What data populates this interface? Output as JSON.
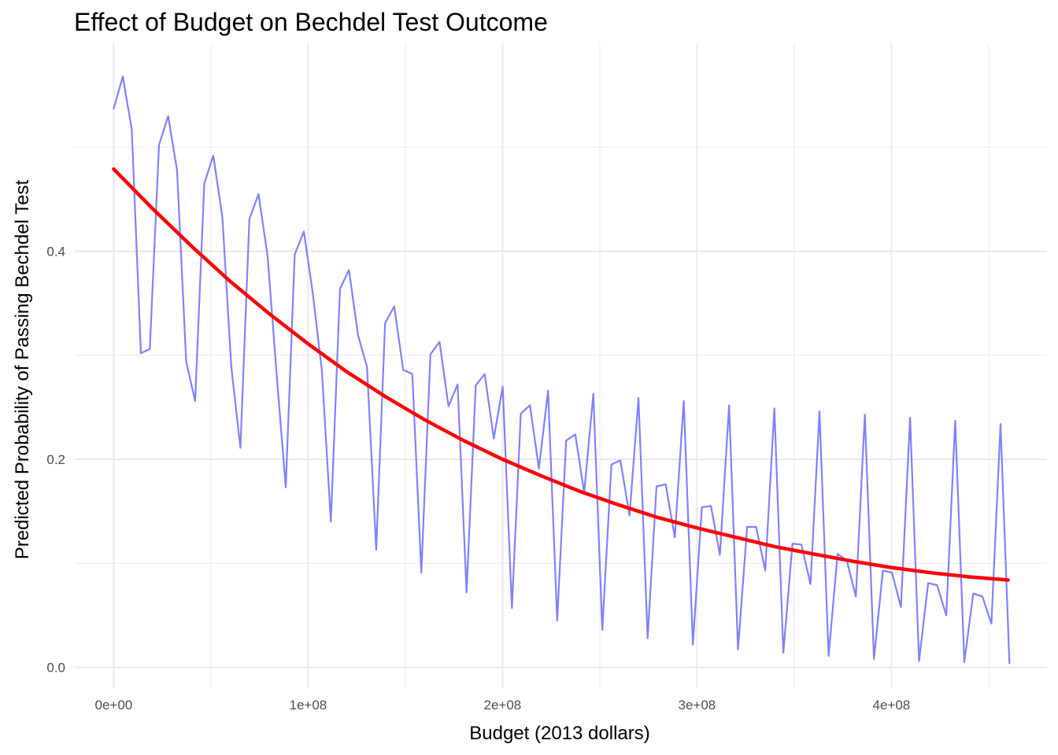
{
  "chart_data": {
    "type": "line",
    "title": "Effect of Budget on Bechdel Test Outcome",
    "xlabel": "Budget (2013 dollars)",
    "ylabel": "Predicted Probability of Passing Bechdel Test",
    "xlim": [
      -20000000,
      480000000
    ],
    "ylim": [
      -0.02,
      0.6
    ],
    "xticks": [
      0,
      100000000,
      200000000,
      300000000,
      400000000
    ],
    "xtick_labels": [
      "0e+00",
      "1e+08",
      "2e+08",
      "3e+08",
      "4e+08"
    ],
    "yticks": [
      0.0,
      0.2,
      0.4
    ],
    "ytick_labels": [
      "0.0",
      "0.2",
      "0.4"
    ],
    "grid": true,
    "colors": {
      "series": "#8080ff",
      "fit": "#ff0000",
      "grid": "#ebebeb"
    },
    "series": [
      {
        "x": [
          0,
          4700000,
          9300000,
          14000000,
          18600000,
          23300000,
          28000000,
          32600000,
          37300000,
          41900000,
          46600000,
          51200000,
          55900000,
          60500000,
          65200000,
          69800000,
          74500000,
          79200000,
          83800000,
          88500000,
          93100000,
          97800000,
          102400000,
          107100000,
          111700000,
          116400000,
          121000000,
          125700000,
          130300000,
          135000000,
          139600000,
          144300000,
          148900000,
          153600000,
          158200000,
          162900000,
          167600000,
          172200000,
          176900000,
          181500000,
          186200000,
          190800000,
          195500000,
          200100000,
          204800000,
          209400000,
          214100000,
          218700000,
          223400000,
          228100000,
          232700000,
          237400000,
          242000000,
          246700000,
          251300000,
          256000000,
          260600000,
          265300000,
          269900000,
          274600000,
          279200000,
          283900000,
          288600000,
          293200000,
          297900000,
          302500000,
          307200000,
          311800000,
          316500000,
          321100000,
          325800000,
          330400000,
          335100000,
          339800000,
          344400000,
          349100000,
          353700000,
          358400000,
          363000000,
          367700000,
          372300000,
          377000000,
          381700000,
          386300000,
          391000000,
          395600000,
          400300000,
          404900000,
          409600000,
          414200000,
          418900000,
          423500000,
          428200000,
          432800000,
          437500000,
          442100000,
          446800000,
          451400000,
          456100000,
          460700000
        ],
        "values": [
          0.537,
          0.568,
          0.517,
          0.302,
          0.306,
          0.502,
          0.53,
          0.478,
          0.294,
          0.256,
          0.465,
          0.492,
          0.433,
          0.289,
          0.211,
          0.431,
          0.455,
          0.395,
          0.282,
          0.173,
          0.397,
          0.419,
          0.36,
          0.285,
          0.14,
          0.364,
          0.382,
          0.319,
          0.289,
          0.113,
          0.331,
          0.347,
          0.286,
          0.282,
          0.091,
          0.301,
          0.313,
          0.251,
          0.272,
          0.072,
          0.271,
          0.282,
          0.22,
          0.27,
          0.057,
          0.244,
          0.252,
          0.191,
          0.266,
          0.045,
          0.218,
          0.224,
          0.168,
          0.263,
          0.036,
          0.195,
          0.199,
          0.146,
          0.259,
          0.028,
          0.174,
          0.176,
          0.125,
          0.256,
          0.022,
          0.154,
          0.155,
          0.108,
          0.252,
          0.017,
          0.135,
          0.135,
          0.093,
          0.249,
          0.014,
          0.119,
          0.118,
          0.08,
          0.246,
          0.011,
          0.109,
          0.103,
          0.068,
          0.243,
          0.008,
          0.093,
          0.091,
          0.058,
          0.24,
          0.006,
          0.081,
          0.079,
          0.05,
          0.237,
          0.005,
          0.071,
          0.068,
          0.042,
          0.234,
          0.004
        ]
      },
      {
        "x": [
          0,
          20000000,
          40000000,
          60000000,
          80000000,
          100000000,
          120000000,
          140000000,
          160000000,
          180000000,
          200000000,
          220000000,
          240000000,
          260000000,
          280000000,
          300000000,
          320000000,
          340000000,
          360000000,
          380000000,
          400000000,
          420000000,
          440000000,
          460000000
        ],
        "values": [
          0.479,
          0.441,
          0.405,
          0.371,
          0.34,
          0.311,
          0.284,
          0.26,
          0.238,
          0.218,
          0.2,
          0.184,
          0.169,
          0.156,
          0.144,
          0.134,
          0.125,
          0.116,
          0.109,
          0.102,
          0.096,
          0.091,
          0.087,
          0.084
        ]
      }
    ]
  }
}
